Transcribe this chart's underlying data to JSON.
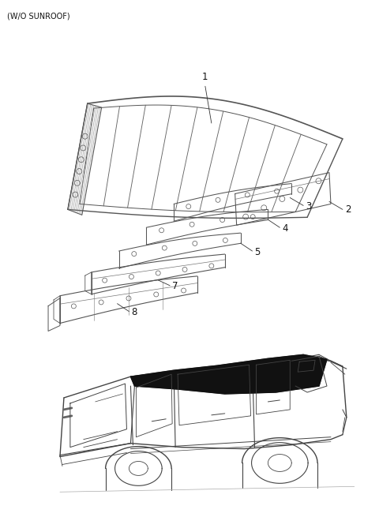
{
  "title": "(W/O SUNROOF)",
  "bg_color": "#ffffff",
  "line_color": "#555555",
  "label_color": "#111111",
  "title_fontsize": 7,
  "label_fontsize": 8.5
}
